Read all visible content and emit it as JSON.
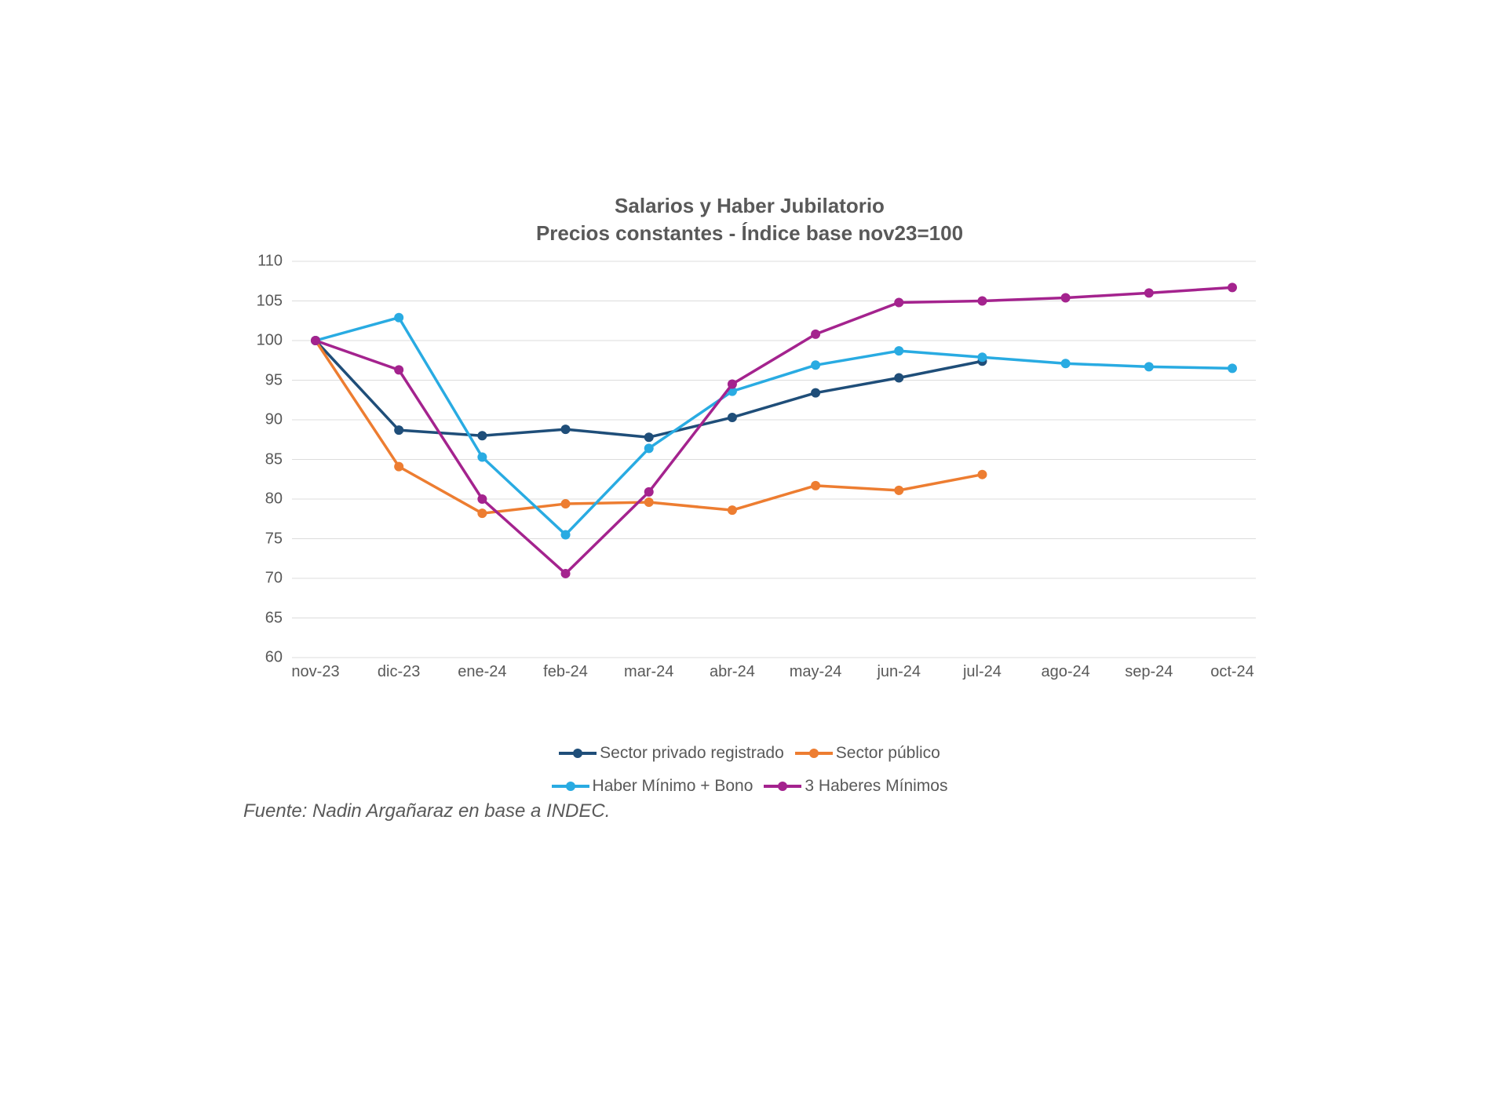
{
  "chart": {
    "type": "line",
    "title_line1": "Salarios y Haber Jubilatorio",
    "title_line2": "Precios constantes - Índice base nov23=100",
    "title_fontsize": 26,
    "title_color": "#595959",
    "background_color": "#ffffff",
    "grid_color": "#dcdcdc",
    "axis_label_color": "#595959",
    "axis_label_fontsize": 20,
    "line_width": 3.5,
    "marker_size": 6,
    "x": {
      "categories": [
        "nov-23",
        "dic-23",
        "ene-24",
        "feb-24",
        "mar-24",
        "abr-24",
        "may-24",
        "jun-24",
        "jul-24",
        "ago-24",
        "sep-24",
        "oct-24"
      ]
    },
    "y": {
      "min": 60,
      "max": 110,
      "ticks": [
        60,
        65,
        70,
        75,
        80,
        85,
        90,
        95,
        100,
        105,
        110
      ]
    },
    "series": [
      {
        "id": "privado",
        "label": "Sector privado registrado",
        "color": "#1f4e79",
        "values": [
          100,
          88.7,
          88.0,
          88.8,
          87.8,
          90.3,
          93.4,
          95.3,
          97.4,
          null,
          null,
          null
        ]
      },
      {
        "id": "publico",
        "label": "Sector público",
        "color": "#ed7d31",
        "values": [
          100,
          84.1,
          78.2,
          79.4,
          79.6,
          78.6,
          81.7,
          81.1,
          83.1,
          null,
          null,
          null
        ]
      },
      {
        "id": "haber_bono",
        "label": "Haber Mínimo + Bono",
        "color": "#29abe2",
        "values": [
          100,
          102.9,
          85.3,
          75.5,
          86.4,
          93.6,
          96.9,
          98.7,
          97.9,
          97.1,
          96.7,
          96.5
        ]
      },
      {
        "id": "tres_haberes",
        "label": "3 Haberes Mínimos",
        "color": "#a4238e",
        "values": [
          100,
          96.3,
          80.0,
          70.6,
          80.9,
          94.5,
          100.8,
          104.8,
          105.0,
          105.4,
          106.0,
          106.7
        ]
      }
    ]
  },
  "source": "Fuente: Nadin Argañaraz en base a INDEC.",
  "source_fontsize": 24,
  "source_color": "#595959"
}
